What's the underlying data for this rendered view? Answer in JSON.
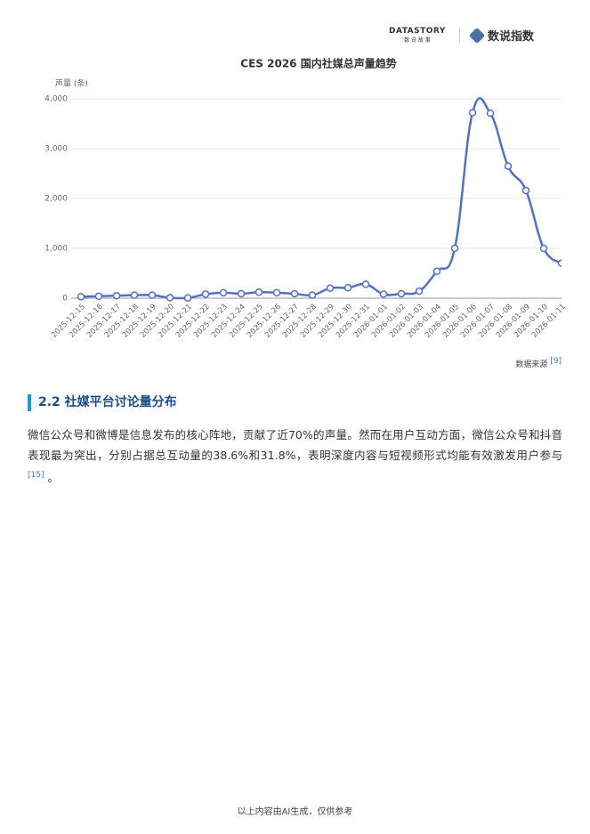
{
  "header": {
    "brand_en": "DATASTORY",
    "brand_cn": "数 说 故 事",
    "brand_index": "数说指数"
  },
  "chart_data": {
    "type": "line",
    "title": "CES 2026 国内社媒总声量趋势",
    "y_label": "声量 (条)",
    "categories": [
      "2025-12-15",
      "2025-12-16",
      "2025-12-17",
      "2025-12-18",
      "2025-12-19",
      "2025-12-20",
      "2025-12-21",
      "2025-12-22",
      "2025-12-23",
      "2025-12-24",
      "2025-12-25",
      "2025-12-26",
      "2025-12-27",
      "2025-12-28",
      "2025-12-29",
      "2025-12-30",
      "2025-12-31",
      "2026-01-01",
      "2026-01-02",
      "2026-01-03",
      "2026-01-04",
      "2026-01-05",
      "2026-01-06",
      "2026-01-07",
      "2026-01-08",
      "2026-01-09",
      "2026-01-10",
      "2026-01-11"
    ],
    "values": [
      30,
      40,
      50,
      60,
      60,
      10,
      5,
      80,
      110,
      90,
      120,
      110,
      90,
      60,
      200,
      210,
      280,
      80,
      90,
      140,
      540,
      1000,
      3720,
      3710,
      2650,
      2160,
      1000,
      700
    ],
    "color": "#5470c6",
    "ylim": [
      0,
      4000
    ],
    "yticks": [
      0,
      {
        "value": 1000,
        "label": "1,000"
      },
      {
        "value": 2000,
        "label": "2,000"
      },
      {
        "value": 3000,
        "label": "3,000"
      },
      {
        "value": 4000,
        "label": "4,000"
      }
    ],
    "grid": true
  },
  "source": {
    "text": "数据来源",
    "citation": "[9]"
  },
  "section": {
    "title": "2.2 社媒平台讨论量分布"
  },
  "paragraph": {
    "text": "微信公众号和微博是信息发布的核心阵地，贡献了近70%的声量。然而在用户互动方面，微信公众号和抖音表现最为突出，分别占据总互动量的38.6%和31.8%，表明深度内容与短视频形式均能有效激发用户参与",
    "citation": "[15]",
    "end": "。"
  },
  "footer": {
    "text": "以上内容由AI生成，仅供参考"
  }
}
